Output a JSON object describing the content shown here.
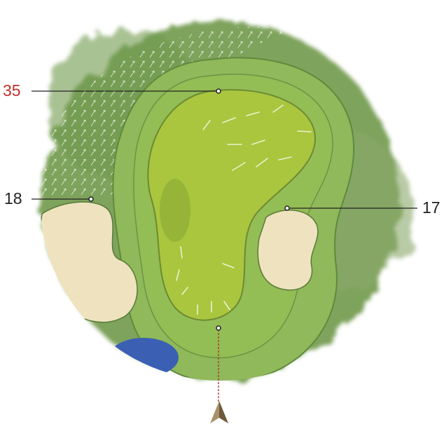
{
  "labels": [
    {
      "text": "35"
    },
    {
      "text": "18"
    },
    {
      "text": "17"
    }
  ]
}
